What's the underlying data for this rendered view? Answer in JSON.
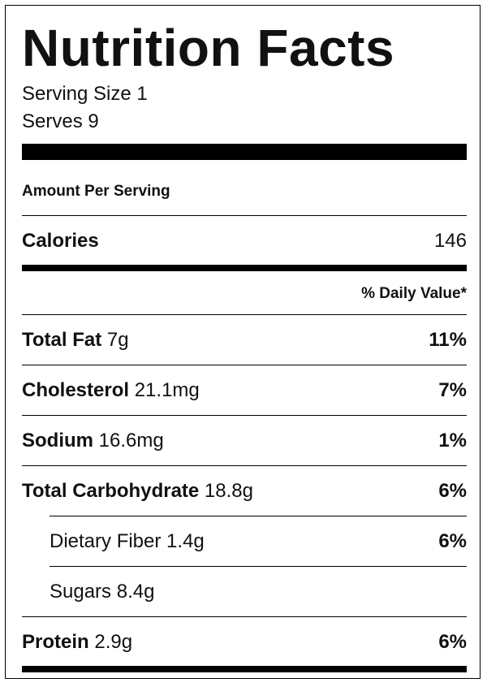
{
  "title": "Nutrition Facts",
  "serving_size": "Serving Size 1",
  "serves": "Serves 9",
  "amount_per_serving": "Amount Per Serving",
  "calories": {
    "label": "Calories",
    "value": "146"
  },
  "daily_value_header": "% Daily Value*",
  "nutrients": [
    {
      "name": "Total Fat",
      "amount": "7g",
      "dv": "11%"
    },
    {
      "name": "Cholesterol",
      "amount": "21.1mg",
      "dv": "7%"
    },
    {
      "name": "Sodium",
      "amount": "16.6mg",
      "dv": "1%"
    },
    {
      "name": "Total Carbohydrate",
      "amount": "18.8g",
      "dv": "6%"
    },
    {
      "name": "Dietary Fiber",
      "amount": "1.4g",
      "dv": "6%"
    },
    {
      "name": "Sugars",
      "amount": "8.4g",
      "dv": ""
    },
    {
      "name": "Protein",
      "amount": "2.9g",
      "dv": "6%"
    }
  ]
}
